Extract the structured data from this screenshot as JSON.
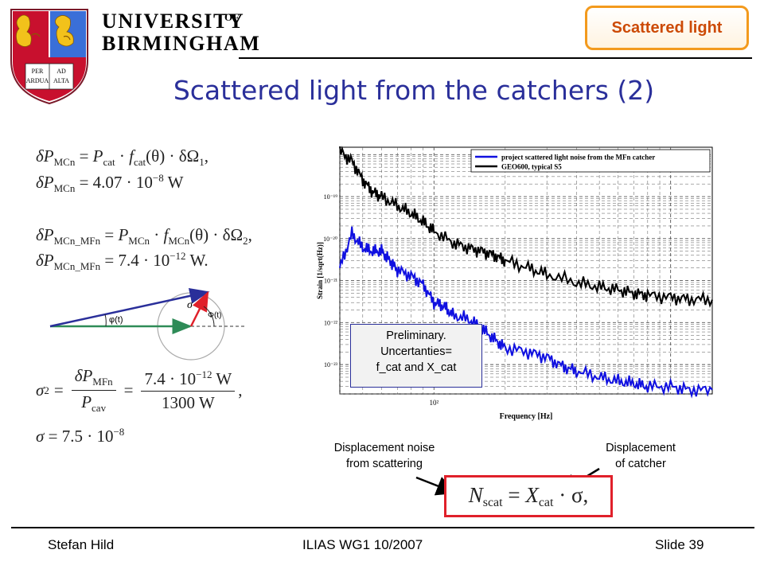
{
  "header": {
    "university_line1": "UNIVERSITY",
    "university_of": "OF",
    "university_line2": "BIRMINGHAM",
    "crest_motto_left_top": "PER",
    "crest_motto_left_bottom": "ARDUA",
    "crest_motto_right_top": "AD",
    "crest_motto_right_bottom": "ALTA",
    "topic_tag": "Scattered light"
  },
  "slide": {
    "title": "Scattered light from the catchers (2)"
  },
  "equations": {
    "delta": "δ",
    "p": "P",
    "mcn": "MCn",
    "mcn_mfn": "MCn_MFn",
    "mfn": "MFn",
    "cat": "cat",
    "cav": "cav",
    "f": "f",
    "theta_arg": "(θ)",
    "dot": "·",
    "omega1": "δΩ",
    "omega_sub1": "1",
    "omega_sub2": "2",
    "eq1_value": "4.07 · 10",
    "eq1_exp": "−8",
    "eq2_value": "7.4 · 10",
    "eq2_exp": "−12",
    "unit_w": "W",
    "sigma": "σ",
    "sigma2_num": "7.4 · 10",
    "sigma2_num_exp": "−12",
    "sigma2_num_unit": "W",
    "sigma2_den": "1300 W",
    "sigma_value": "7.5 · 10",
    "sigma_exp": "−8",
    "eq_sign": "=",
    "comma": ",",
    "period": "."
  },
  "diagram": {
    "phi_label": "φ(t)",
    "Phi_label": "Φ(t)",
    "sigma_label": "σ"
  },
  "chart_data": {
    "type": "line",
    "title": "",
    "xlabel": "Frequency [Hz]",
    "ylabel": "Strain [1/sqrt(Hz)]",
    "xscale": "log",
    "yscale": "log",
    "xlim": [
      40,
      1500
    ],
    "ylim": [
      2e-24,
      1.5e-18
    ],
    "x_ticks": [
      "10²"
    ],
    "y_ticks": [
      "10⁻¹⁹",
      "10⁻²⁰",
      "10⁻²¹",
      "10⁻²²",
      "10⁻²³"
    ],
    "grid": true,
    "legend_position": "top-right",
    "series": [
      {
        "name": "project scattered light noise from the MFn catcher",
        "color": "#1010e0",
        "x": [
          40,
          45,
          50,
          55,
          60,
          65,
          70,
          80,
          90,
          100,
          110,
          120,
          140,
          160,
          180,
          200,
          250,
          300,
          350,
          400,
          500,
          600,
          700,
          800,
          1000,
          1200,
          1500
        ],
        "y": [
          2e-21,
          1.3e-20,
          6e-21,
          5e-21,
          5e-21,
          3e-21,
          1.8e-21,
          1.3e-21,
          8e-22,
          3e-22,
          2.5e-22,
          1.5e-22,
          1.2e-22,
          7e-23,
          4e-23,
          2.5e-23,
          2e-23,
          1.5e-23,
          9e-24,
          7e-24,
          5e-24,
          4e-24,
          3.5e-24,
          3e-24,
          3e-24,
          2.5e-24,
          2.5e-24
        ]
      },
      {
        "name": "GEO600, typical S5",
        "color": "#000000",
        "x": [
          40,
          45,
          50,
          55,
          60,
          70,
          80,
          90,
          100,
          120,
          140,
          160,
          180,
          200,
          250,
          300,
          400,
          500,
          600,
          700,
          800,
          1000,
          1200,
          1500
        ],
        "y": [
          1.2e-18,
          7e-19,
          2.5e-19,
          1.3e-19,
          1e-19,
          6e-20,
          4e-20,
          2.5e-20,
          1.5e-20,
          8e-21,
          6e-21,
          5e-21,
          4e-21,
          3e-21,
          2e-21,
          1.4e-21,
          9e-22,
          7e-22,
          6e-22,
          5e-22,
          4.5e-22,
          4e-22,
          3.6e-22,
          3.5e-22
        ]
      }
    ],
    "annotation": [
      "Preliminary.",
      "Uncertanties=",
      "f_cat and X_cat"
    ]
  },
  "callouts": {
    "left_line1": "Displacement noise",
    "left_line2": "from scattering",
    "right_line1": "Displacement",
    "right_line2": "of catcher"
  },
  "formula": {
    "n": "N",
    "scat": "scat",
    "x": "X",
    "cat": "cat",
    "rest": "· σ,"
  },
  "footer": {
    "author": "Stefan Hild",
    "event": "ILIAS WG1 10/2007",
    "slide": "Slide 39"
  }
}
